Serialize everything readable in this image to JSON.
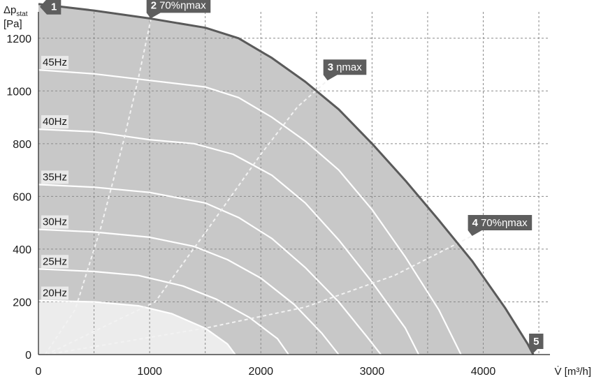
{
  "chart_data": {
    "type": "line",
    "x_axis": {
      "min": 0,
      "max": 4600,
      "ticks": [
        0,
        1000,
        2000,
        3000,
        4000
      ],
      "gridlines": [
        500,
        1000,
        1500,
        2000,
        2500,
        3000,
        3500,
        4000,
        4500
      ],
      "label": "V̇ [m³/h]"
    },
    "y_axis": {
      "min": 0,
      "max": 1300,
      "ticks": [
        0,
        200,
        400,
        600,
        800,
        1000,
        1200
      ],
      "gridlines": [
        200,
        400,
        600,
        800,
        1000,
        1200
      ],
      "label_line1": "Δp",
      "label_sub": "stat",
      "label_line2": "[Pa]"
    },
    "grid": true,
    "colors": {
      "region_dark": "#c8c8c8",
      "region_light": "#ececec",
      "envelope": "#5a5a5a",
      "marker": "#5e5e5e",
      "grid": "#8a8a8a",
      "frequency_line": "#ffffff",
      "efficiency_line": "#f2f2f2"
    },
    "envelope": [
      [
        0,
        1330
      ],
      [
        500,
        1305
      ],
      [
        1000,
        1275
      ],
      [
        1500,
        1240
      ],
      [
        1800,
        1200
      ],
      [
        2100,
        1125
      ],
      [
        2400,
        1035
      ],
      [
        2700,
        930
      ],
      [
        3000,
        800
      ],
      [
        3300,
        660
      ],
      [
        3600,
        510
      ],
      [
        3900,
        355
      ],
      [
        4200,
        175
      ],
      [
        4400,
        40
      ],
      [
        4450,
        0
      ]
    ],
    "frequency_curves": [
      {
        "label": "45Hz",
        "points": [
          [
            0,
            1080
          ],
          [
            500,
            1065
          ],
          [
            1000,
            1040
          ],
          [
            1500,
            1015
          ],
          [
            1800,
            975
          ],
          [
            2100,
            900
          ],
          [
            2400,
            810
          ],
          [
            2700,
            700
          ],
          [
            3000,
            550
          ],
          [
            3300,
            370
          ],
          [
            3600,
            170
          ],
          [
            3800,
            0
          ]
        ]
      },
      {
        "label": "40Hz",
        "points": [
          [
            0,
            855
          ],
          [
            500,
            845
          ],
          [
            1000,
            815
          ],
          [
            1400,
            800
          ],
          [
            1750,
            760
          ],
          [
            2100,
            680
          ],
          [
            2400,
            575
          ],
          [
            2700,
            435
          ],
          [
            3000,
            275
          ],
          [
            3300,
            100
          ],
          [
            3420,
            0
          ]
        ]
      },
      {
        "label": "35Hz",
        "points": [
          [
            0,
            645
          ],
          [
            500,
            635
          ],
          [
            1000,
            615
          ],
          [
            1500,
            575
          ],
          [
            1800,
            520
          ],
          [
            2100,
            440
          ],
          [
            2400,
            330
          ],
          [
            2700,
            200
          ],
          [
            2950,
            70
          ],
          [
            3080,
            0
          ]
        ]
      },
      {
        "label": "30Hz",
        "points": [
          [
            0,
            475
          ],
          [
            500,
            465
          ],
          [
            1000,
            445
          ],
          [
            1400,
            410
          ],
          [
            1700,
            360
          ],
          [
            2000,
            290
          ],
          [
            2300,
            190
          ],
          [
            2550,
            80
          ],
          [
            2700,
            0
          ]
        ]
      },
      {
        "label": "25Hz",
        "points": [
          [
            0,
            325
          ],
          [
            500,
            315
          ],
          [
            900,
            300
          ],
          [
            1300,
            260
          ],
          [
            1600,
            210
          ],
          [
            1900,
            140
          ],
          [
            2150,
            60
          ],
          [
            2250,
            0
          ]
        ]
      },
      {
        "label": "20Hz",
        "points": [
          [
            0,
            205
          ],
          [
            500,
            200
          ],
          [
            900,
            185
          ],
          [
            1200,
            155
          ],
          [
            1500,
            100
          ],
          [
            1700,
            40
          ],
          [
            1770,
            0
          ]
        ]
      }
    ],
    "efficiency_lines": [
      {
        "name": "70%ηmax",
        "points": [
          [
            60,
            0
          ],
          [
            330,
            170
          ],
          [
            560,
            480
          ],
          [
            760,
            800
          ],
          [
            900,
            1050
          ],
          [
            1010,
            1270
          ]
        ]
      },
      {
        "name": "ηmax",
        "points": [
          [
            70,
            0
          ],
          [
            1050,
            200
          ],
          [
            1530,
            480
          ],
          [
            2000,
            760
          ],
          [
            2330,
            940
          ],
          [
            2600,
            1040
          ]
        ]
      },
      {
        "name": "70%ηmax",
        "points": [
          [
            70,
            0
          ],
          [
            1500,
            100
          ],
          [
            2400,
            180
          ],
          [
            3200,
            300
          ],
          [
            3900,
            450
          ]
        ]
      }
    ],
    "points": [
      {
        "id": "1",
        "text": "",
        "x": 0,
        "y": 1330
      },
      {
        "id": "2",
        "text": "70%ηmax",
        "x": 1010,
        "y": 1275
      },
      {
        "id": "3",
        "text": "ηmax",
        "x": 2600,
        "y": 1040
      },
      {
        "id": "4",
        "text": "70%ηmax",
        "x": 3900,
        "y": 450
      },
      {
        "id": "5",
        "text": "",
        "x": 4450,
        "y": 0
      }
    ]
  }
}
